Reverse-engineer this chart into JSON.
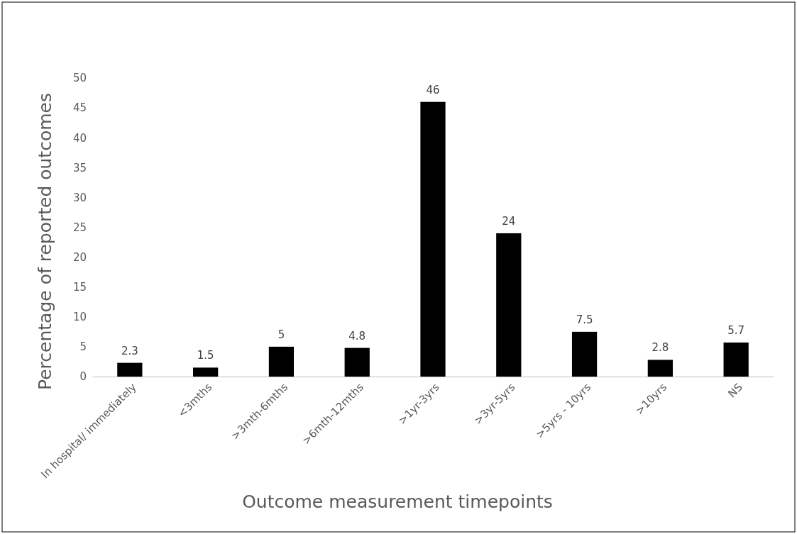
{
  "chart_data": {
    "type": "bar",
    "xlabel": "Outcome measurement timepoints",
    "ylabel": "Percentage of reported outcomes",
    "categories": [
      "In hospital/ immediately",
      "<3mths",
      ">3mth-6mths",
      ">6mth-12mths",
      ">1yr-3yrs",
      ">3yr-5yrs",
      ">5yrs - 10yrs",
      ">10yrs",
      "NS"
    ],
    "values": [
      2.3,
      1.5,
      5,
      4.8,
      46,
      24,
      7.5,
      2.8,
      5.7
    ],
    "color": "#000000",
    "ylim": [
      0,
      50
    ],
    "yticks": [
      0,
      5,
      10,
      15,
      20,
      25,
      30,
      35,
      40,
      45,
      50
    ],
    "data_labels": true
  }
}
